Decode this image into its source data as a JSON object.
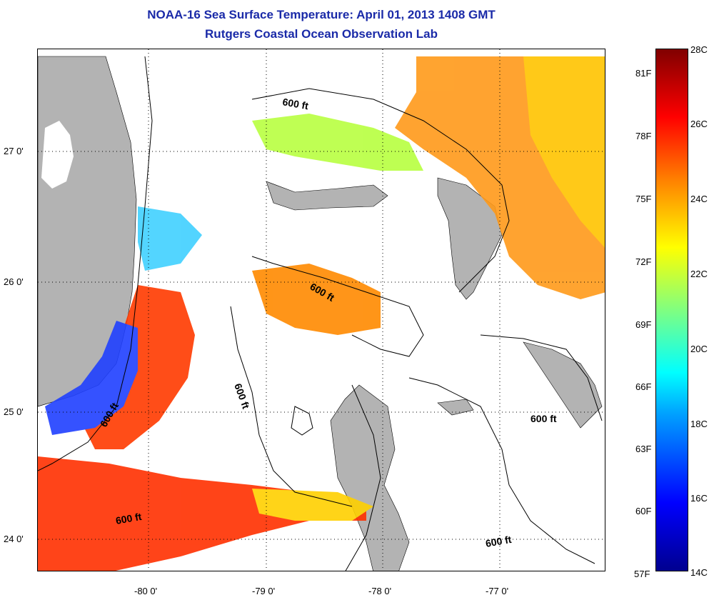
{
  "title": "NOAA-16 Sea Surface Temperature:  April 01, 2013 1408 GMT",
  "subtitle": "Rutgers Coastal Ocean Observation Lab",
  "lat_labels": [
    "27 0'",
    "26 0'",
    "25 0'",
    "24 0'"
  ],
  "lon_labels": [
    "-80 0'",
    "-79 0'",
    "-78 0'",
    "-77 0'"
  ],
  "contour_label": "600 ft",
  "colorbar": {
    "celsius": [
      "28C",
      "26C",
      "24C",
      "22C",
      "20C",
      "18C",
      "16C",
      "14C"
    ],
    "fahrenheit": [
      "81F",
      "78F",
      "75F",
      "72F",
      "69F",
      "66F",
      "63F",
      "60F",
      "57F"
    ],
    "colors": [
      "#800000",
      "#ff0000",
      "#ff8000",
      "#ffff00",
      "#80ff80",
      "#00ffff",
      "#0080ff",
      "#0000ff",
      "#00008f"
    ]
  },
  "land_color": "#b3b3b3"
}
